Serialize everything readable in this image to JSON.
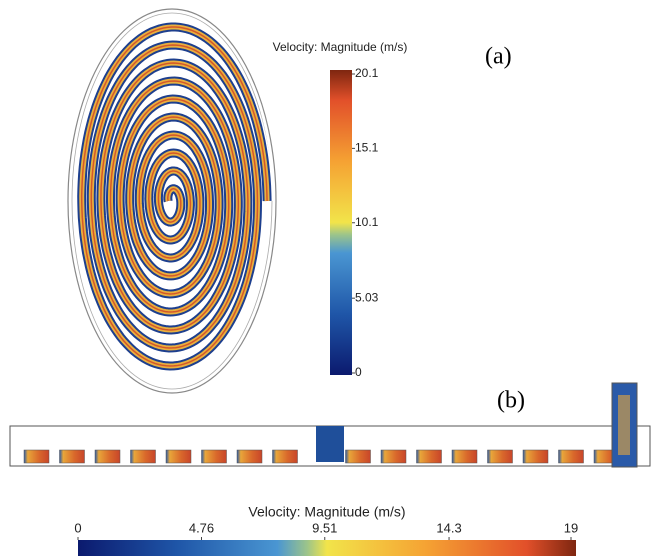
{
  "panel_a": {
    "label": "(a)",
    "colorbar": {
      "title": "Velocity: Magnitude (m/s)",
      "range": [
        0,
        20.1
      ],
      "ticks": [
        0,
        5.03,
        10.1,
        15.1,
        20.1
      ]
    }
  },
  "panel_b": {
    "label": "(b)",
    "colorbar": {
      "title": "Velocity: Magnitude (m/s)",
      "range": [
        0,
        19
      ],
      "ticks": [
        0,
        4.76,
        9.51,
        14.3,
        19
      ]
    }
  }
}
